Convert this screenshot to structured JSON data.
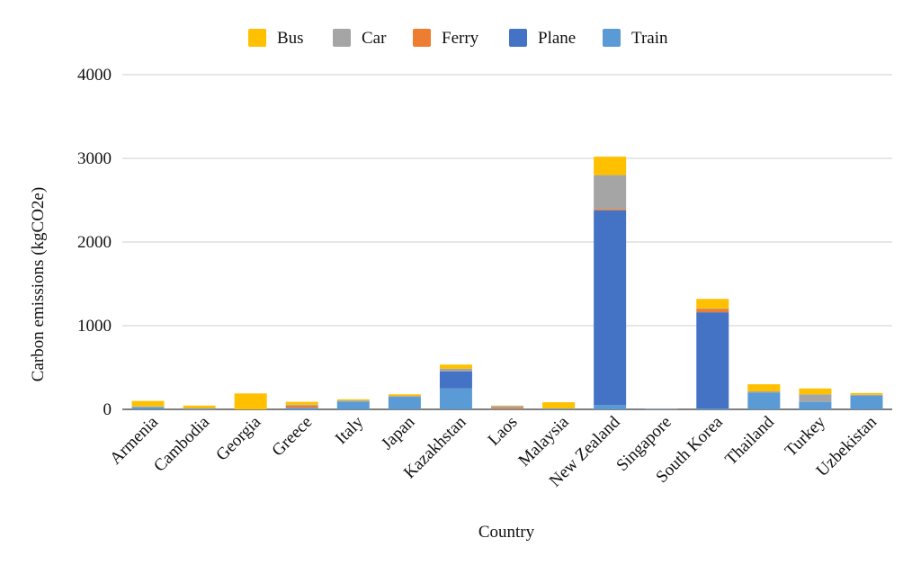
{
  "chart_data": {
    "type": "bar",
    "stacked": true,
    "title": "",
    "xlabel": "Country",
    "ylabel": "Carbon emissions (kgCO2e)",
    "ylim": [
      0,
      4000
    ],
    "yticks": [
      0,
      1000,
      2000,
      3000,
      4000
    ],
    "grid": true,
    "legend_position": "top",
    "categories": [
      "Armenia",
      "Cambodia",
      "Georgia",
      "Greece",
      "Italy",
      "Japan",
      "Kazakhstan",
      "Laos",
      "Malaysia",
      "New Zealand",
      "Singapore",
      "South Korea",
      "Thailand",
      "Turkey",
      "Uzbekistan"
    ],
    "series": [
      {
        "name": "Train",
        "color": "#5b9bd5",
        "values": [
          25,
          5,
          0,
          20,
          95,
          150,
          250,
          5,
          10,
          50,
          5,
          10,
          200,
          90,
          165
        ]
      },
      {
        "name": "Plane",
        "color": "#4472c4",
        "values": [
          0,
          0,
          0,
          0,
          0,
          0,
          205,
          0,
          0,
          2330,
          0,
          1150,
          0,
          0,
          0
        ]
      },
      {
        "name": "Ferry",
        "color": "#ed7d31",
        "values": [
          0,
          0,
          0,
          25,
          0,
          0,
          0,
          15,
          0,
          15,
          0,
          40,
          0,
          0,
          0
        ]
      },
      {
        "name": "Car",
        "color": "#a5a5a5",
        "values": [
          10,
          10,
          0,
          10,
          10,
          10,
          30,
          20,
          0,
          405,
          5,
          5,
          15,
          90,
          10
        ]
      },
      {
        "name": "Bus",
        "color": "#ffc000",
        "values": [
          65,
          30,
          190,
          35,
          15,
          20,
          50,
          5,
          75,
          220,
          0,
          115,
          85,
          70,
          20
        ]
      }
    ],
    "legend_order": [
      "Bus",
      "Car",
      "Ferry",
      "Plane",
      "Train"
    ]
  }
}
